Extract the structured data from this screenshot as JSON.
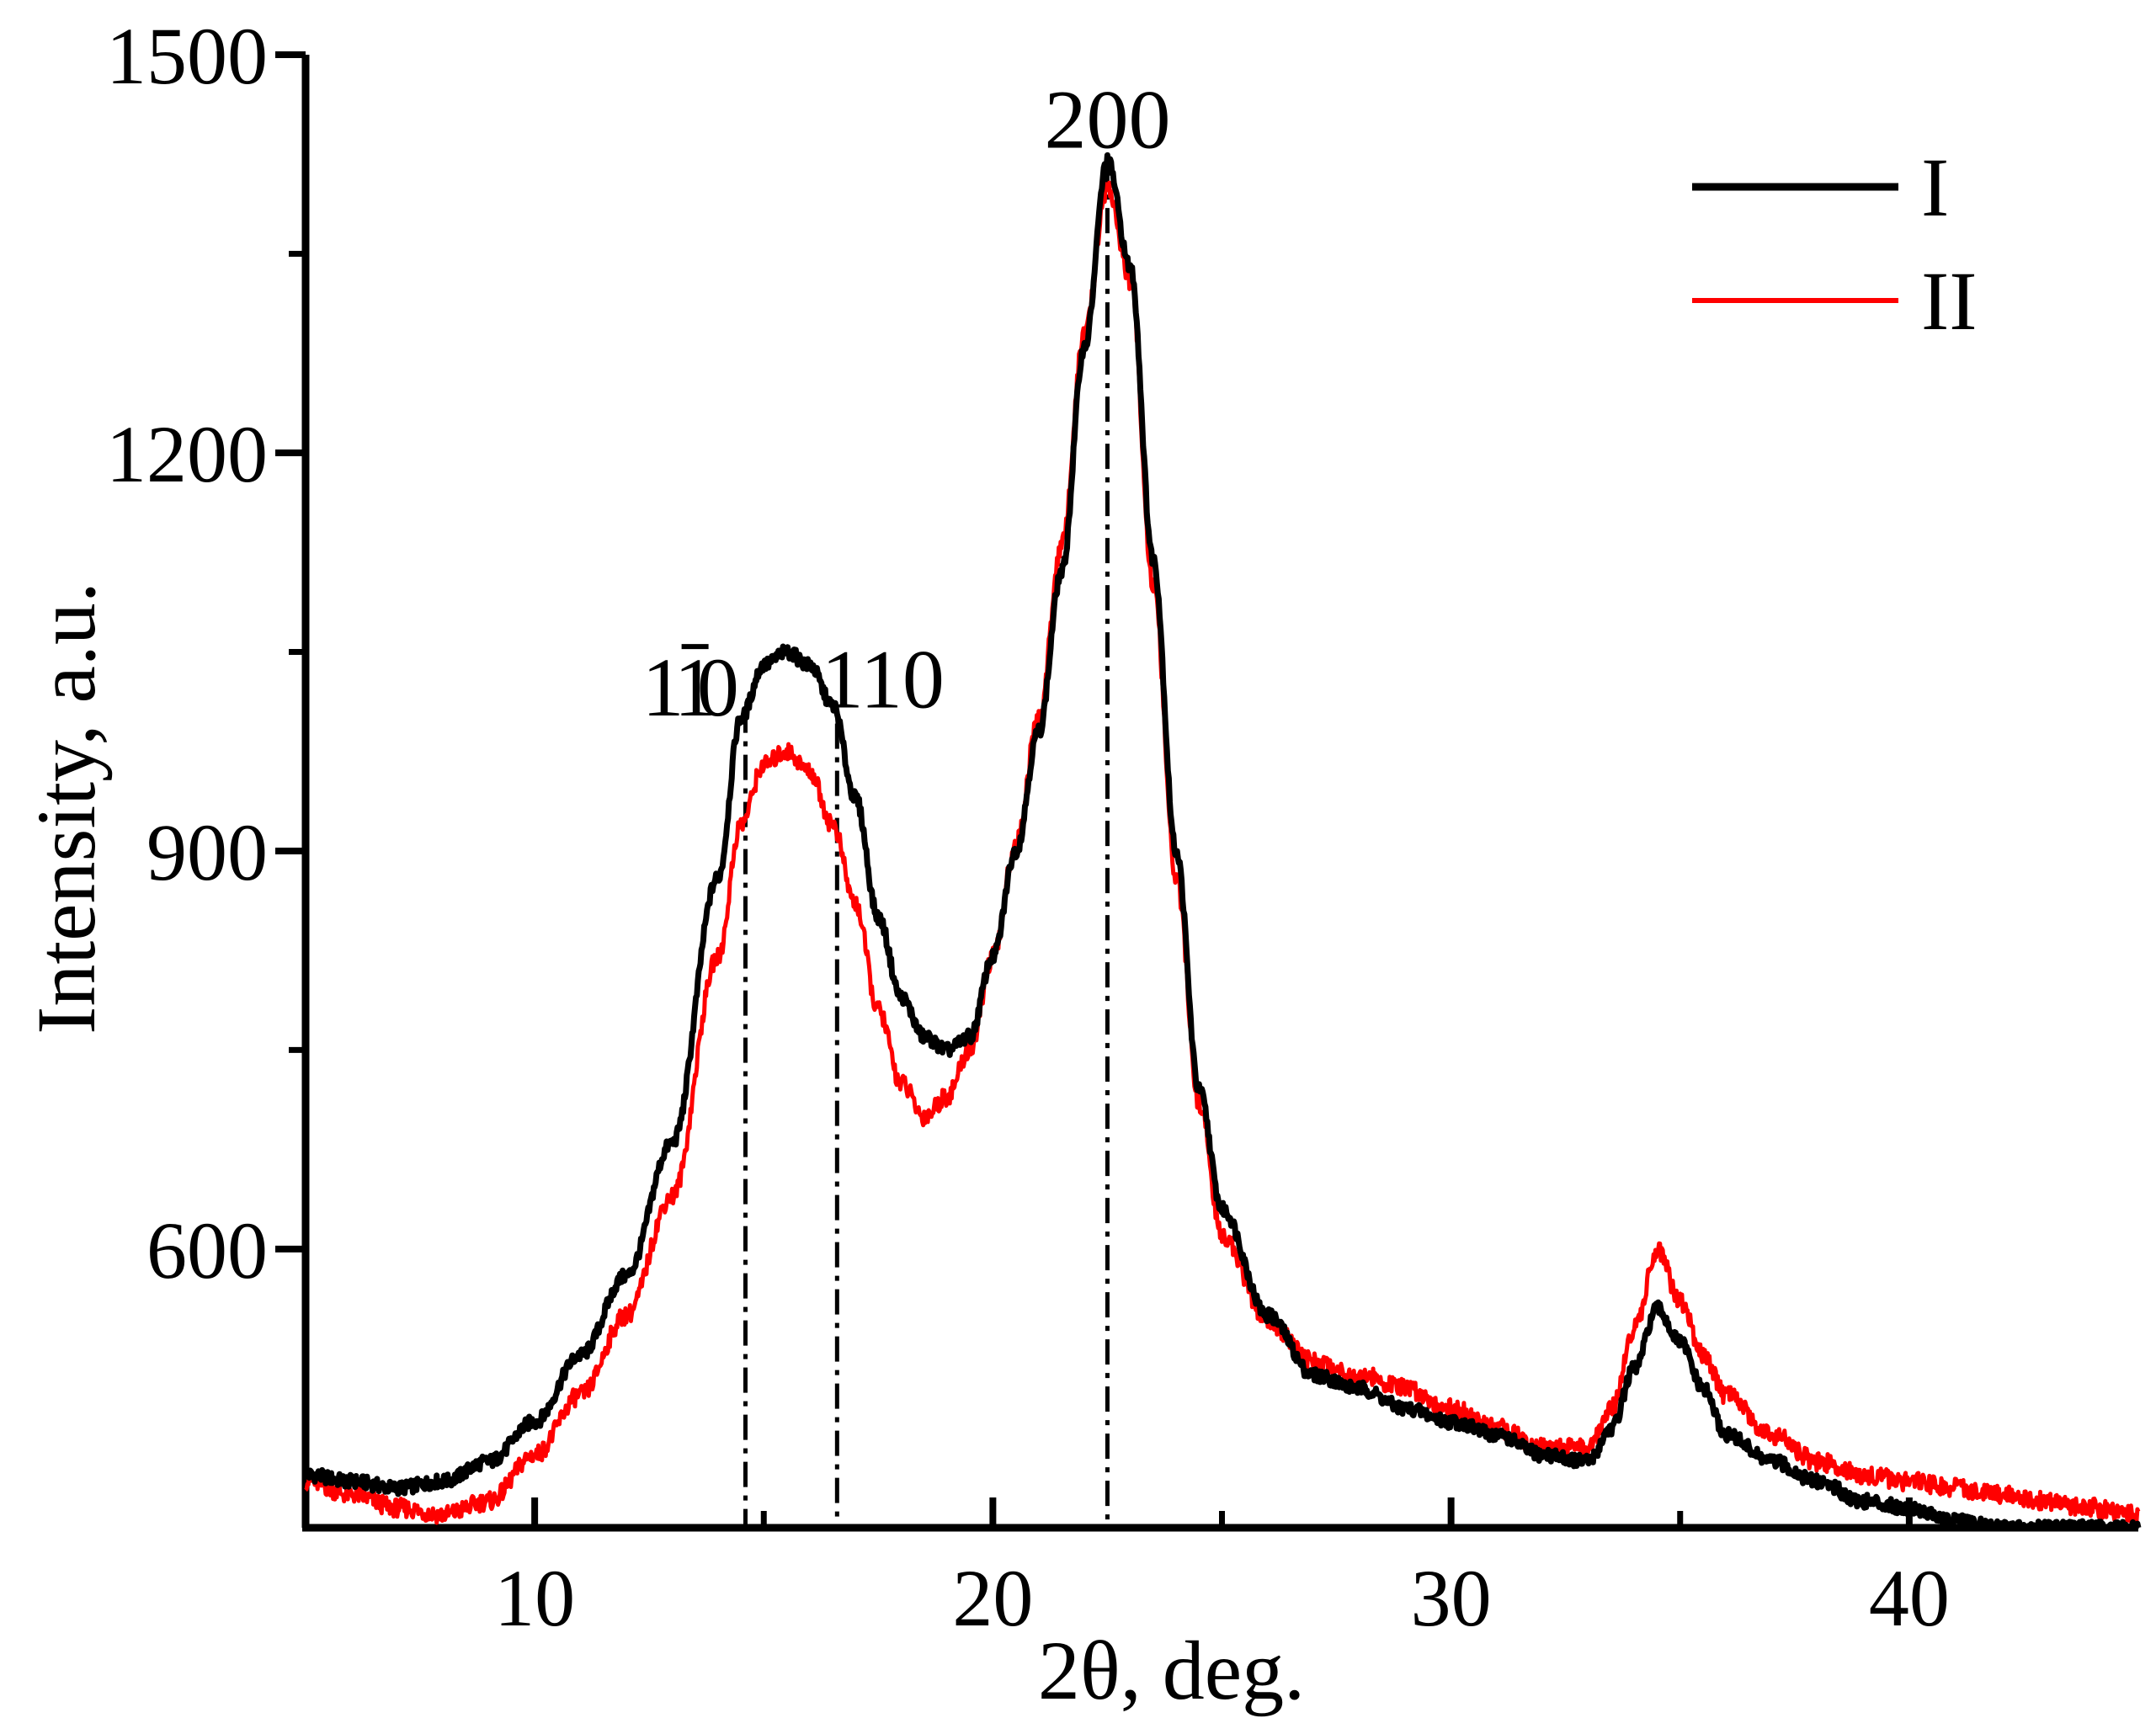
{
  "chart_data": {
    "type": "line",
    "title": "",
    "xlabel": "2θ, deg.",
    "ylabel": "Intensity, a.u.",
    "xlim": [
      5,
      45
    ],
    "ylim": [
      390,
      1500
    ],
    "xticks": [
      10,
      20,
      30,
      40
    ],
    "xtick_labels": [
      "10",
      "20",
      "30",
      "40"
    ],
    "xminor": [
      15,
      25,
      35
    ],
    "yticks": [
      600,
      900,
      1200,
      1500
    ],
    "ytick_labels": [
      "600",
      "900",
      "1200",
      "1500"
    ],
    "grid": false,
    "legend_position": "top-right",
    "series": [
      {
        "name": "I",
        "color": "#000000",
        "x": [
          5,
          6,
          7,
          8,
          9,
          10,
          11,
          12,
          13,
          14,
          14.5,
          15,
          15.5,
          16,
          16.5,
          17,
          17.5,
          18,
          18.5,
          19,
          19.5,
          20,
          20.5,
          21,
          21.5,
          22,
          22.5,
          23,
          23.5,
          24,
          24.5,
          25,
          26,
          27,
          28,
          29,
          30,
          31,
          32,
          33,
          33.5,
          34,
          34.5,
          35,
          35.5,
          36,
          37,
          38,
          39,
          40,
          41,
          42,
          43,
          44,
          45
        ],
        "y": [
          430,
          425,
          420,
          425,
          440,
          470,
          520,
          580,
          680,
          880,
          1000,
          1040,
          1050,
          1040,
          1010,
          940,
          850,
          790,
          760,
          750,
          760,
          820,
          900,
          990,
          1110,
          1280,
          1420,
          1340,
          1120,
          900,
          720,
          630,
          550,
          505,
          495,
          480,
          470,
          460,
          445,
          440,
          465,
          510,
          555,
          530,
          495,
          460,
          440,
          425,
          410,
          405,
          395,
          390,
          390,
          390,
          390
        ]
      },
      {
        "name": "II",
        "color": "#ff0000",
        "x": [
          5,
          6,
          7,
          8,
          9,
          10,
          11,
          12,
          13,
          14,
          14.5,
          15,
          15.5,
          16,
          16.5,
          17,
          17.5,
          18,
          18.5,
          19,
          19.5,
          20,
          20.5,
          21,
          21.5,
          22,
          22.5,
          23,
          23.5,
          24,
          24.5,
          25,
          26,
          27,
          28,
          29,
          30,
          31,
          32,
          33,
          33.5,
          34,
          34.5,
          35,
          35.5,
          36,
          37,
          38,
          39,
          40,
          41,
          42,
          43,
          44,
          45
        ],
        "y": [
          425,
          415,
          405,
          400,
          410,
          445,
          490,
          550,
          640,
          820,
          920,
          965,
          975,
          960,
          920,
          860,
          780,
          725,
          700,
          715,
          750,
          820,
          905,
          1000,
          1130,
          1290,
          1400,
          1330,
          1100,
          880,
          710,
          610,
          545,
          515,
          505,
          495,
          480,
          465,
          450,
          450,
          480,
          540,
          600,
          560,
          520,
          490,
          460,
          440,
          430,
          425,
          420,
          415,
          410,
          405,
          400
        ]
      }
    ],
    "reference_lines": [
      14.6,
      16.6,
      22.5
    ],
    "annotations": [
      {
        "text": "1",
        "x": 12.8,
        "y": 1002
      },
      {
        "text": "1",
        "x": 13.5,
        "y": 1002
      },
      {
        "text": "0",
        "x": 14.0,
        "y": 1002
      },
      {
        "text": "110",
        "x": 17.6,
        "y": 1008
      },
      {
        "text": "200",
        "x": 22.5,
        "y": 1430
      }
    ]
  }
}
